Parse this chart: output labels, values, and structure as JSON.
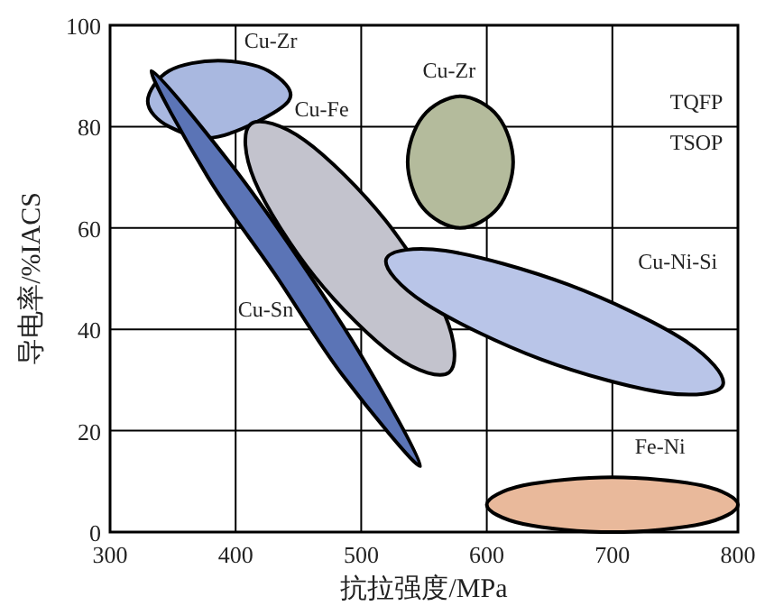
{
  "chart_data": {
    "type": "area",
    "xlabel": "抗拉强度/MPa",
    "ylabel": "导电率/%IACS",
    "xlim": [
      300,
      800
    ],
    "ylim": [
      0,
      100
    ],
    "xticks": [
      300,
      400,
      500,
      600,
      700,
      800
    ],
    "yticks": [
      0,
      20,
      40,
      60,
      80,
      100
    ],
    "grid": true,
    "annotations": [
      "TQFP",
      "TSOP"
    ],
    "series": [
      {
        "name": "Cu-Zr",
        "color": "#a9b8e0",
        "x": [
          330,
          347,
          386,
          426,
          442,
          426,
          386,
          347
        ],
        "values": [
          85,
          91,
          93,
          91,
          85,
          null,
          78,
          80
        ]
      },
      {
        "name": "Cu-Fe",
        "color": "#c3c3cd",
        "x": [
          570,
          567,
          519,
          455,
          412,
          415,
          463,
          527
        ],
        "values": [
          31.5,
          42.6,
          61.6,
          77.3,
          80.5,
          69.4,
          50.4,
          34.7
        ]
      },
      {
        "name": "Cu-Sn",
        "color": "#5b74b6",
        "x": [
          333,
          395,
          450,
          502,
          547,
          485,
          431,
          378
        ],
        "values": [
          91,
          73,
          54,
          34,
          13,
          31,
          51,
          70
        ]
      },
      {
        "name": "Cu-Zr",
        "color": "#b4bb9c",
        "x": [
          621,
          609,
          579,
          549,
          537,
          549,
          579,
          609
        ],
        "values": [
          73,
          82,
          86,
          82,
          73,
          64,
          60,
          64
        ]
      },
      {
        "name": "Cu-Ni-Si",
        "color": "#b9c5e8",
        "x": [
          788,
          757,
          665,
          567,
          520,
          551,
          643,
          741
        ],
        "values": [
          29,
          37.9,
          48.8,
          55.5,
          53.9,
          45.1,
          34.1,
          27.5
        ]
      },
      {
        "name": "Fe-Ni",
        "color": "#e9b99b",
        "x": [
          800,
          771,
          700,
          629,
          600,
          629,
          700,
          771
        ],
        "values": [
          5.4,
          9.2,
          10.8,
          9.2,
          5.4,
          1.6,
          0,
          1.6
        ]
      }
    ]
  }
}
